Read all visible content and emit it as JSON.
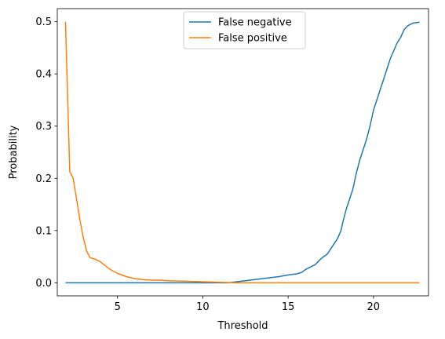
{
  "chart_data": {
    "type": "line",
    "title": "",
    "xlabel": "Threshold",
    "ylabel": "Probability",
    "xlim": [
      1.47,
      23.23
    ],
    "ylim": [
      -0.025,
      0.525
    ],
    "xticks": [
      5,
      10,
      15,
      20
    ],
    "yticks": [
      0.0,
      0.1,
      0.2,
      0.3,
      0.4,
      0.5
    ],
    "xtick_labels": [
      "5",
      "10",
      "15",
      "20"
    ],
    "ytick_labels": [
      "0.0",
      "0.1",
      "0.2",
      "0.3",
      "0.4",
      "0.5"
    ],
    "grid": false,
    "legend_position": "upper center",
    "series": [
      {
        "name": "False negative",
        "color": "#1f77b4",
        "x": [
          1.95,
          3.0,
          5.0,
          8.0,
          10.0,
          11.5,
          12.0,
          12.5,
          13.0,
          13.5,
          14.0,
          14.5,
          15.0,
          15.5,
          15.8,
          16.0,
          16.3,
          16.6,
          16.8,
          17.0,
          17.3,
          17.6,
          17.9,
          18.1,
          18.2,
          18.4,
          18.6,
          18.8,
          19.0,
          19.2,
          19.4,
          19.6,
          19.8,
          20.0,
          20.2,
          20.4,
          20.6,
          20.8,
          21.0,
          21.2,
          21.4,
          21.6,
          21.8,
          22.0,
          22.3,
          22.7
        ],
        "y": [
          0.0,
          0.0,
          0.0,
          0.0,
          0.0,
          0.0,
          0.002,
          0.004,
          0.006,
          0.008,
          0.01,
          0.012,
          0.015,
          0.017,
          0.02,
          0.025,
          0.03,
          0.035,
          0.042,
          0.048,
          0.055,
          0.07,
          0.085,
          0.1,
          0.115,
          0.14,
          0.16,
          0.18,
          0.21,
          0.235,
          0.255,
          0.275,
          0.3,
          0.33,
          0.35,
          0.37,
          0.39,
          0.41,
          0.43,
          0.445,
          0.46,
          0.47,
          0.485,
          0.492,
          0.497,
          0.499
        ]
      },
      {
        "name": "False positive",
        "color": "#ff7f0e",
        "x": [
          1.95,
          2.2,
          2.4,
          2.6,
          2.8,
          3.0,
          3.2,
          3.4,
          3.7,
          4.0,
          4.3,
          4.6,
          5.0,
          5.5,
          6.0,
          6.5,
          7.0,
          7.5,
          8.0,
          9.0,
          10.0,
          11.0,
          12.0,
          13.0,
          15.0,
          18.0,
          22.7
        ],
        "y": [
          0.5,
          0.213,
          0.2,
          0.16,
          0.12,
          0.085,
          0.06,
          0.048,
          0.045,
          0.04,
          0.032,
          0.025,
          0.018,
          0.012,
          0.008,
          0.006,
          0.005,
          0.005,
          0.004,
          0.003,
          0.002,
          0.001,
          0.0,
          0.0,
          0.0,
          0.0,
          0.0
        ]
      }
    ]
  }
}
